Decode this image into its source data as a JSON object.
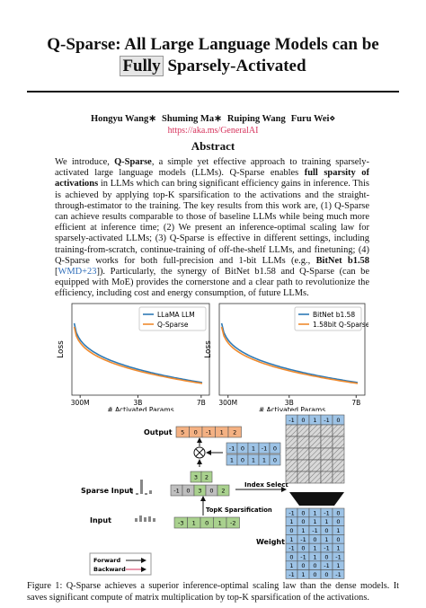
{
  "title": {
    "line1": "Q-Sparse: All Large Language Models can be",
    "highlight": "Fully",
    "rest": "Sparsely-Activated"
  },
  "authors": [
    "Hongyu Wang∗",
    "Shuming Ma∗",
    "Ruiping Wang",
    "Furu Wei⋄"
  ],
  "url": "https://aka.ms/GeneralAI",
  "abstract": {
    "heading": "Abstract",
    "segments": [
      {
        "text": "We introduce, "
      },
      {
        "text": "Q-Sparse",
        "style": "bold"
      },
      {
        "text": ", a simple yet effective approach to training sparsely-activated large language models (LLMs). Q-Sparse enables "
      },
      {
        "text": "full sparsity of activations",
        "style": "bold"
      },
      {
        "text": " in LLMs which can bring significant efficiency gains in inference. This is achieved by applying top-K sparsification to the activations and the straight-through-estimator to the training. The key results from this work are, (1) Q-Sparse can achieve results comparable to those of baseline LLMs while being much more efficient at inference time; (2) We present an inference-optimal scaling law for sparsely-activated LLMs; (3) Q-Sparse is effective in different settings, including training-from-scratch, continue-training of off-the-shelf LLMs, and finetuning; (4) Q-Sparse works for both full-precision and 1-bit LLMs (e.g., "
      },
      {
        "text": "BitNet b1.58",
        "style": "bold"
      },
      {
        "text": " ["
      },
      {
        "text": "WMD+23",
        "style": "link"
      },
      {
        "text": "]). Particularly, the synergy of BitNet b1.58 and Q-Sparse (can be equipped with MoE) provides the cornerstone and a clear path to revolutionize the efficiency, including cost and energy consumption, of future LLMs."
      }
    ]
  },
  "charts": [
    {
      "y_label": "Loss",
      "x_label": "# Activated Params",
      "x_ticks": [
        "300M",
        "3B",
        "7B"
      ],
      "legend": [
        {
          "name": "LLaMA LLM",
          "color": "#2f7ab5"
        },
        {
          "name": "Q-Sparse",
          "color": "#ef8a2e"
        }
      ]
    },
    {
      "y_label": "Loss",
      "x_label": "# Activated Params",
      "x_ticks": [
        "300M",
        "3B",
        "7B"
      ],
      "legend": [
        {
          "name": "BitNet b1.58",
          "color": "#2f7ab5"
        },
        {
          "name": "1.58bit Q-Sparse",
          "color": "#ef8a2e"
        }
      ]
    }
  ],
  "diagram": {
    "output_label": "Output",
    "output": [
      "5",
      "0",
      "-1",
      "1",
      "2"
    ],
    "partial": [
      [
        "-1",
        "0",
        "1",
        "-1",
        "0"
      ],
      [
        "1",
        "0",
        "1",
        "1",
        "0"
      ]
    ],
    "selected": [
      "3",
      "2"
    ],
    "sparse_input_label": "Sparse Input",
    "sparse_input": [
      "-1",
      "0",
      "3",
      "0",
      "2"
    ],
    "index_select": "Index Select",
    "topk": "TopK Sparsification",
    "input_label": "Input",
    "input": [
      "-3",
      "1",
      "0",
      "1",
      "-2"
    ],
    "weight_label": "Weight",
    "weight_top": [
      "-1",
      "0",
      "1",
      "-1",
      "0"
    ],
    "weight": [
      [
        "-1",
        "0",
        "1",
        "-1",
        "0"
      ],
      [
        "1",
        "0",
        "1",
        "1",
        "0"
      ],
      [
        "0",
        "1",
        "-1",
        "0",
        "1"
      ],
      [
        "1",
        "-1",
        "0",
        "1",
        "0"
      ],
      [
        "-1",
        "0",
        "1",
        "-1",
        "1"
      ],
      [
        "0",
        "-1",
        "1",
        "0",
        "-1"
      ],
      [
        "1",
        "0",
        "0",
        "-1",
        "1"
      ],
      [
        "-1",
        "1",
        "0",
        "0",
        "-1"
      ]
    ],
    "forward": "Forward",
    "backward": "Backward"
  },
  "caption": "Figure 1: Q-Sparse achieves a superior inference-optimal scaling law than the dense models. It saves significant compute of matrix multiplication by top-K sparsification of the activations."
}
